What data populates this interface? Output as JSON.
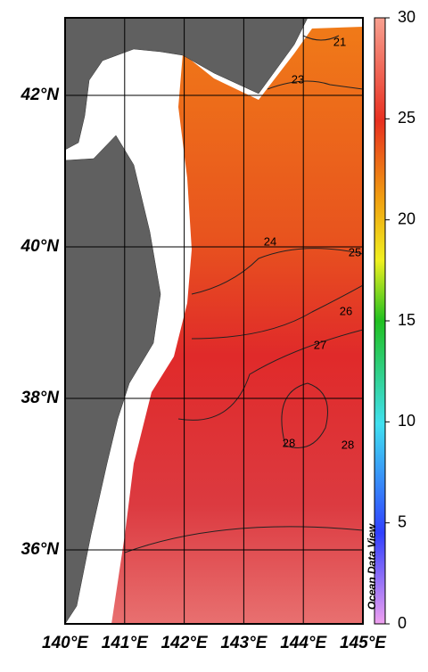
{
  "map": {
    "lon_labels": [
      "140°E",
      "141°E",
      "142°E",
      "143°E",
      "144°E",
      "145°E"
    ],
    "lat_labels": [
      "42°N",
      "40°N",
      "38°N",
      "36°N"
    ],
    "colorbar": {
      "range": [
        0,
        30
      ],
      "ticks": [
        0,
        5,
        10,
        15,
        20,
        25,
        30
      ]
    },
    "contour_labels": [
      "21",
      "23",
      "24",
      "25",
      "26",
      "27",
      "28",
      "28"
    ],
    "watermark": "Ocean Data View"
  }
}
